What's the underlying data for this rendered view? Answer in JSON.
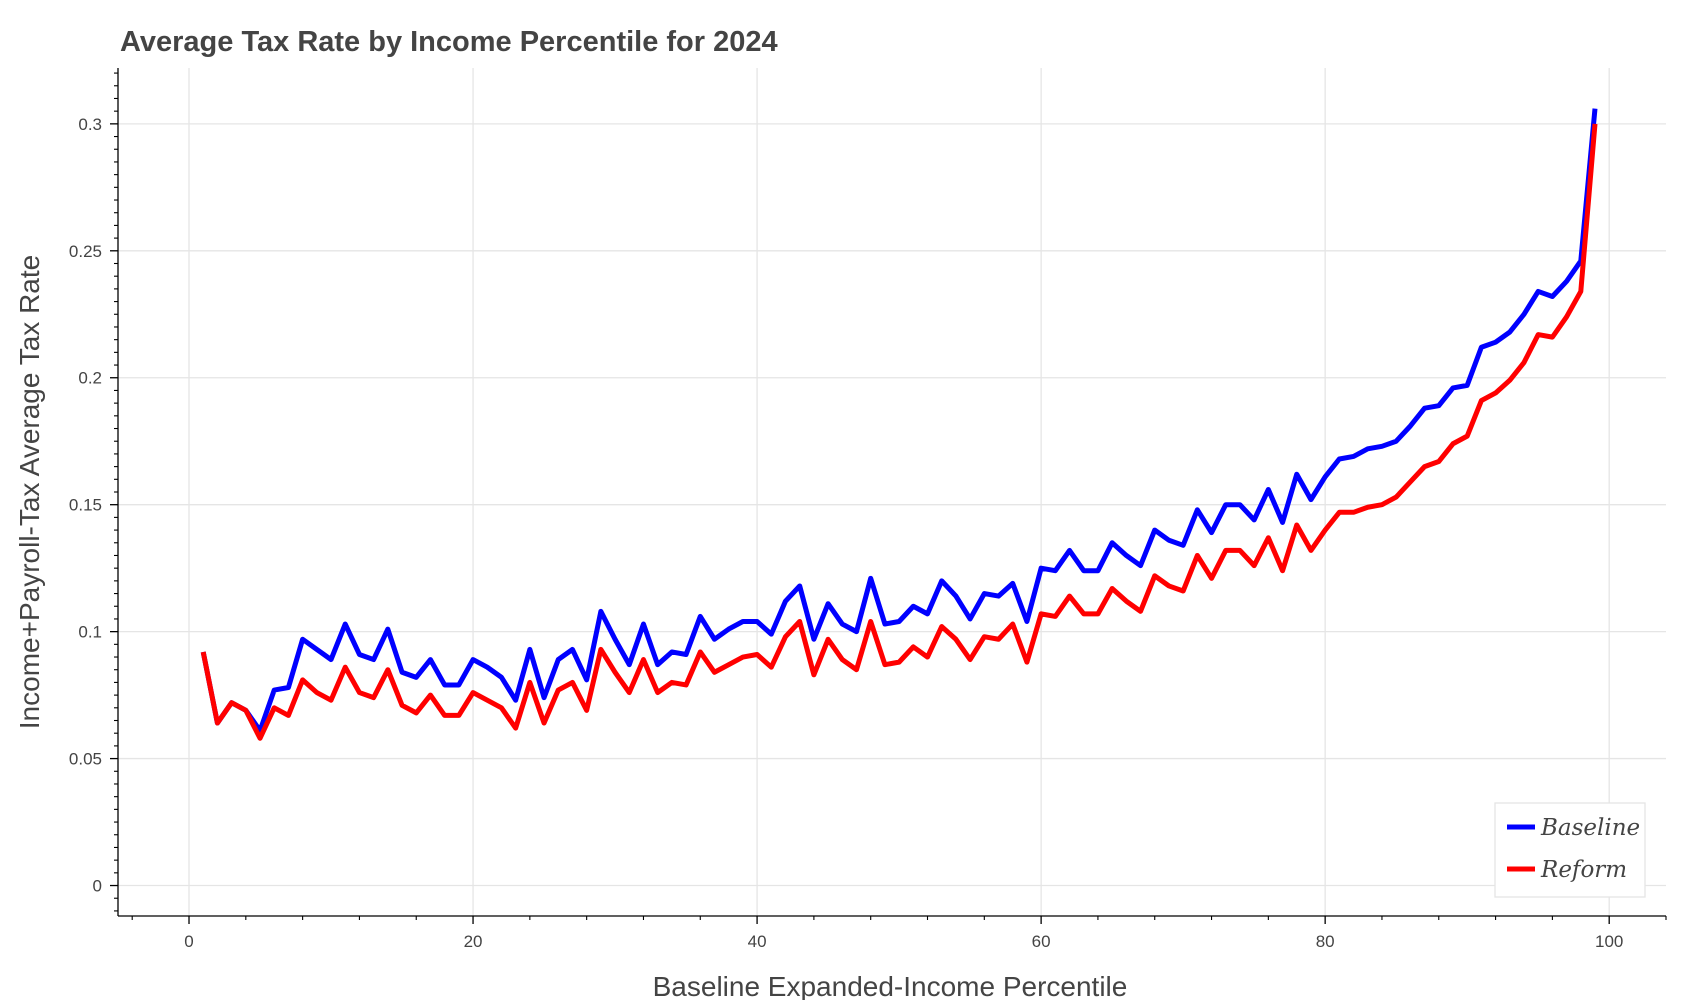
{
  "chart_data": {
    "type": "line",
    "title": "Average Tax Rate by Income Percentile for 2024",
    "xlabel": "Baseline Expanded-Income Percentile",
    "ylabel": "Income+Payroll-Tax Average Tax Rate",
    "xlim": [
      -5,
      104
    ],
    "ylim": [
      -0.012,
      0.322
    ],
    "x_ticks": [
      0,
      20,
      40,
      60,
      80,
      100
    ],
    "x_tick_labels": [
      "0",
      "20",
      "40",
      "60",
      "80",
      "100"
    ],
    "y_ticks": [
      0,
      0.05,
      0.1,
      0.15,
      0.2,
      0.25,
      0.3
    ],
    "y_tick_labels": [
      "0",
      "0.05",
      "0.1",
      "0.15",
      "0.2",
      "0.25",
      "0.3"
    ],
    "grid": true,
    "legend_position": "bottom-right",
    "x": [
      1,
      2,
      3,
      4,
      5,
      6,
      7,
      8,
      9,
      10,
      11,
      12,
      13,
      14,
      15,
      16,
      17,
      18,
      19,
      20,
      21,
      22,
      23,
      24,
      25,
      26,
      27,
      28,
      29,
      30,
      31,
      32,
      33,
      34,
      35,
      36,
      37,
      38,
      39,
      40,
      41,
      42,
      43,
      44,
      45,
      46,
      47,
      48,
      49,
      50,
      51,
      52,
      53,
      54,
      55,
      56,
      57,
      58,
      59,
      60,
      61,
      62,
      63,
      64,
      65,
      66,
      67,
      68,
      69,
      70,
      71,
      72,
      73,
      74,
      75,
      76,
      77,
      78,
      79,
      80,
      81,
      82,
      83,
      84,
      85,
      86,
      87,
      88,
      89,
      90,
      91,
      92,
      93,
      94,
      95,
      96,
      97,
      98,
      99
    ],
    "series": [
      {
        "name": "Baseline",
        "color": "#0000ff",
        "values": [
          0.092,
          0.064,
          0.072,
          0.069,
          0.061,
          0.077,
          0.078,
          0.097,
          0.093,
          0.089,
          0.103,
          0.091,
          0.089,
          0.101,
          0.084,
          0.082,
          0.089,
          0.079,
          0.079,
          0.089,
          0.086,
          0.082,
          0.073,
          0.093,
          0.074,
          0.089,
          0.093,
          0.081,
          0.108,
          0.097,
          0.087,
          0.103,
          0.087,
          0.092,
          0.091,
          0.106,
          0.097,
          0.101,
          0.104,
          0.104,
          0.099,
          0.112,
          0.118,
          0.097,
          0.111,
          0.103,
          0.1,
          0.121,
          0.103,
          0.104,
          0.11,
          0.107,
          0.12,
          0.114,
          0.105,
          0.115,
          0.114,
          0.119,
          0.104,
          0.125,
          0.124,
          0.132,
          0.124,
          0.124,
          0.135,
          0.13,
          0.126,
          0.14,
          0.136,
          0.134,
          0.148,
          0.139,
          0.15,
          0.15,
          0.144,
          0.156,
          0.143,
          0.162,
          0.152,
          0.161,
          0.168,
          0.169,
          0.172,
          0.173,
          0.175,
          0.181,
          0.188,
          0.189,
          0.196,
          0.197,
          0.212,
          0.214,
          0.218,
          0.225,
          0.234,
          0.232,
          0.238,
          0.246,
          0.306
        ]
      },
      {
        "name": "Reform",
        "color": "#ff0000",
        "values": [
          0.092,
          0.064,
          0.072,
          0.069,
          0.058,
          0.07,
          0.067,
          0.081,
          0.076,
          0.073,
          0.086,
          0.076,
          0.074,
          0.085,
          0.071,
          0.068,
          0.075,
          0.067,
          0.067,
          0.076,
          0.073,
          0.07,
          0.062,
          0.08,
          0.064,
          0.077,
          0.08,
          0.069,
          0.093,
          0.084,
          0.076,
          0.089,
          0.076,
          0.08,
          0.079,
          0.092,
          0.084,
          0.087,
          0.09,
          0.091,
          0.086,
          0.098,
          0.104,
          0.083,
          0.097,
          0.089,
          0.085,
          0.104,
          0.087,
          0.088,
          0.094,
          0.09,
          0.102,
          0.097,
          0.089,
          0.098,
          0.097,
          0.103,
          0.088,
          0.107,
          0.106,
          0.114,
          0.107,
          0.107,
          0.117,
          0.112,
          0.108,
          0.122,
          0.118,
          0.116,
          0.13,
          0.121,
          0.132,
          0.132,
          0.126,
          0.137,
          0.124,
          0.142,
          0.132,
          0.14,
          0.147,
          0.147,
          0.149,
          0.15,
          0.153,
          0.159,
          0.165,
          0.167,
          0.174,
          0.177,
          0.191,
          0.194,
          0.199,
          0.206,
          0.217,
          0.216,
          0.224,
          0.234,
          0.3
        ]
      }
    ]
  }
}
